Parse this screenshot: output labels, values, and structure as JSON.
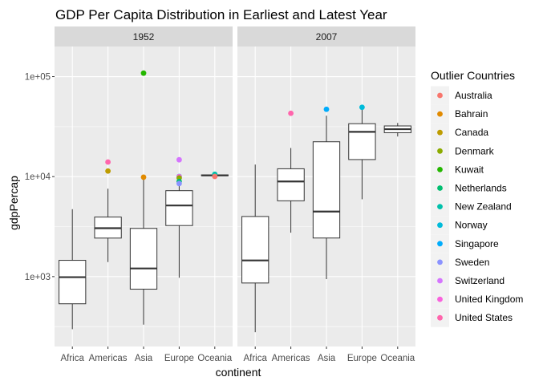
{
  "chart_data": {
    "type": "boxplot",
    "title": "GDP Per Capita Distribution in Earliest and Latest Year",
    "xlabel": "continent",
    "ylabel": "gdpPercap",
    "yscale": "log10",
    "ylim": [
      200,
      200000
    ],
    "yticks": [
      1000,
      10000,
      100000
    ],
    "ytick_labels": [
      "1e+03",
      "1e+04",
      "1e+05"
    ],
    "categories": [
      "Africa",
      "Americas",
      "Asia",
      "Europe",
      "Oceania"
    ],
    "legend": {
      "title": "Outlier Countries",
      "position": "right",
      "items": [
        {
          "label": "Australia",
          "color": "#F8766D"
        },
        {
          "label": "Bahrain",
          "color": "#E18A00"
        },
        {
          "label": "Canada",
          "color": "#BE9C00"
        },
        {
          "label": "Denmark",
          "color": "#8CAB00"
        },
        {
          "label": "Kuwait",
          "color": "#24B700"
        },
        {
          "label": "Netherlands",
          "color": "#00BE70"
        },
        {
          "label": "New Zealand",
          "color": "#00C1AB"
        },
        {
          "label": "Norway",
          "color": "#00BBDA"
        },
        {
          "label": "Singapore",
          "color": "#00ACFC"
        },
        {
          "label": "Sweden",
          "color": "#8B93FF"
        },
        {
          "label": "Switzerland",
          "color": "#D575FE"
        },
        {
          "label": "United Kingdom",
          "color": "#F962DD"
        },
        {
          "label": "United States",
          "color": "#FF65AC"
        }
      ]
    },
    "panels": [
      {
        "label": "1952",
        "boxes": [
          {
            "category": "Africa",
            "min": 298,
            "q1": 535,
            "median": 987,
            "q3": 1455,
            "max": 4725
          },
          {
            "category": "Americas",
            "min": 1398,
            "q1": 2428,
            "median": 3048,
            "q3": 3940,
            "max": 7568
          },
          {
            "category": "Asia",
            "min": 331,
            "q1": 749,
            "median": 1207,
            "q3": 3035,
            "max": 9867
          },
          {
            "category": "Europe",
            "min": 974,
            "q1": 3241,
            "median": 5142,
            "q3": 7237,
            "max": 10000
          },
          {
            "category": "Oceania",
            "min": 10040,
            "q1": 10200,
            "median": 10298,
            "q3": 10400,
            "max": 10557
          }
        ],
        "outliers": [
          {
            "category": "Americas",
            "value": 13990,
            "country": "United States"
          },
          {
            "category": "Americas",
            "value": 11367,
            "country": "Canada"
          },
          {
            "category": "Asia",
            "value": 108382,
            "country": "Kuwait"
          },
          {
            "category": "Asia",
            "value": 9867,
            "country": "Bahrain"
          },
          {
            "category": "Europe",
            "value": 14734,
            "country": "Switzerland"
          },
          {
            "category": "Europe",
            "value": 10039,
            "country": "Norway"
          },
          {
            "category": "Europe",
            "value": 9980,
            "country": "United Kingdom"
          },
          {
            "category": "Europe",
            "value": 9692,
            "country": "Denmark"
          },
          {
            "category": "Europe",
            "value": 8942,
            "country": "Netherlands"
          },
          {
            "category": "Europe",
            "value": 8528,
            "country": "Sweden"
          },
          {
            "category": "Oceania",
            "value": 10556,
            "country": "New Zealand"
          },
          {
            "category": "Oceania",
            "value": 10040,
            "country": "Australia"
          }
        ]
      },
      {
        "label": "2007",
        "boxes": [
          {
            "category": "Africa",
            "min": 278,
            "q1": 863,
            "median": 1452,
            "q3": 3993,
            "max": 13206
          },
          {
            "category": "Americas",
            "min": 2749,
            "q1": 5728,
            "median": 8948,
            "q3": 11978,
            "max": 19328
          },
          {
            "category": "Asia",
            "min": 944,
            "q1": 2432,
            "median": 4471,
            "q3": 22316,
            "max": 40675
          },
          {
            "category": "Europe",
            "min": 5937,
            "q1": 14812,
            "median": 28054,
            "q3": 33817,
            "max": 49357
          },
          {
            "category": "Oceania",
            "min": 25185,
            "q1": 27497,
            "median": 29810,
            "q3": 32122,
            "max": 34435
          }
        ],
        "outliers": [
          {
            "category": "Americas",
            "value": 42952,
            "country": "United States"
          },
          {
            "category": "Asia",
            "value": 47143,
            "country": "Singapore"
          },
          {
            "category": "Europe",
            "value": 49357,
            "country": "Norway"
          }
        ]
      }
    ]
  }
}
